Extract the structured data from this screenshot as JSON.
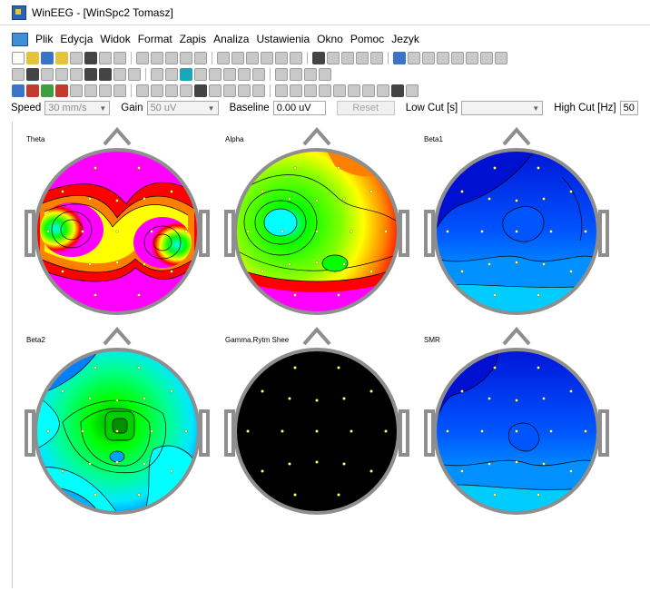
{
  "window": {
    "title": "WinEEG - [WinSpc2 Tomasz]"
  },
  "menu": [
    "Plik",
    "Edycja",
    "Widok",
    "Format",
    "Zapis",
    "Analiza",
    "Ustawienia",
    "Okno",
    "Pomoc",
    "Jezyk"
  ],
  "controls": {
    "speed_label": "Speed",
    "speed_value": "30 mm/s",
    "gain_label": "Gain",
    "gain_value": "50 uV",
    "baseline_label": "Baseline",
    "baseline_value": "0.00 uV",
    "reset_label": "Reset",
    "lowcut_label": "Low Cut [s]",
    "lowcut_value": "",
    "highcut_label": "High Cut [Hz]",
    "highcut_value": "50"
  },
  "maps": [
    {
      "label": "Theta",
      "style": "theta"
    },
    {
      "label": "Alpha",
      "style": "alpha"
    },
    {
      "label": "Beta1",
      "style": "beta1"
    },
    {
      "label": "Beta2",
      "style": "beta2"
    },
    {
      "label": "Gamma.Rytm Shee",
      "style": "gamma"
    },
    {
      "label": "SMR",
      "style": "smr"
    }
  ],
  "colors": {
    "magenta": "#ff00ff",
    "red": "#ff0000",
    "orange": "#ff8000",
    "yellow": "#ffff00",
    "green": "#00ff00",
    "cyan": "#00ffff",
    "blue": "#0055ff",
    "darkblue": "#0010d0",
    "black": "#000000",
    "headgray": "#8e8e8e"
  }
}
